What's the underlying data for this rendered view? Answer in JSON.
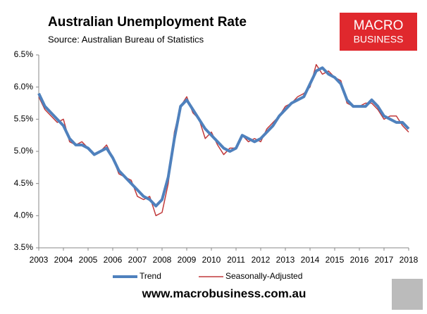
{
  "chart_data": {
    "type": "line",
    "title": "Australian Unemployment Rate",
    "subtitle": "Source: Australian Bureau of Statistics",
    "logo": [
      "MACRO",
      "BUSINESS"
    ],
    "footer": "www.macrobusiness.com.au",
    "x": [
      2003,
      2003.25,
      2003.5,
      2003.75,
      2004,
      2004.25,
      2004.5,
      2004.75,
      2005,
      2005.25,
      2005.5,
      2005.75,
      2006,
      2006.25,
      2006.5,
      2006.75,
      2007,
      2007.25,
      2007.5,
      2007.75,
      2008,
      2008.25,
      2008.5,
      2008.75,
      2009,
      2009.25,
      2009.5,
      2009.75,
      2010,
      2010.25,
      2010.5,
      2010.75,
      2011,
      2011.25,
      2011.5,
      2011.75,
      2012,
      2012.25,
      2012.5,
      2012.75,
      2013,
      2013.25,
      2013.5,
      2013.75,
      2014,
      2014.25,
      2014.5,
      2014.75,
      2015,
      2015.25,
      2015.5,
      2015.75,
      2016,
      2016.25,
      2016.5,
      2016.75,
      2017,
      2017.25,
      2017.5,
      2017.75,
      2018
    ],
    "series": [
      {
        "name": "Trend",
        "color": "#4f81bd",
        "width": 4,
        "values": [
          5.9,
          5.7,
          5.6,
          5.5,
          5.4,
          5.2,
          5.1,
          5.1,
          5.05,
          4.95,
          5.0,
          5.05,
          4.9,
          4.7,
          4.6,
          4.5,
          4.4,
          4.3,
          4.25,
          4.15,
          4.25,
          4.6,
          5.2,
          5.7,
          5.8,
          5.65,
          5.5,
          5.35,
          5.25,
          5.15,
          5.05,
          5.0,
          5.05,
          5.25,
          5.2,
          5.15,
          5.2,
          5.3,
          5.4,
          5.55,
          5.65,
          5.75,
          5.8,
          5.85,
          6.05,
          6.25,
          6.3,
          6.2,
          6.15,
          6.05,
          5.8,
          5.7,
          5.7,
          5.7,
          5.8,
          5.7,
          5.55,
          5.5,
          5.45,
          5.45,
          5.35
        ]
      },
      {
        "name": "Seasonally-Adjusted",
        "color": "#c0393b",
        "width": 1.5,
        "values": [
          5.85,
          5.65,
          5.55,
          5.45,
          5.5,
          5.15,
          5.1,
          5.15,
          5.05,
          4.95,
          5.0,
          5.1,
          4.9,
          4.65,
          4.6,
          4.55,
          4.3,
          4.25,
          4.3,
          4.0,
          4.05,
          4.5,
          5.3,
          5.7,
          5.85,
          5.6,
          5.5,
          5.2,
          5.3,
          5.1,
          4.95,
          5.05,
          5.05,
          5.25,
          5.15,
          5.2,
          5.15,
          5.35,
          5.45,
          5.55,
          5.7,
          5.75,
          5.85,
          5.9,
          6.0,
          6.35,
          6.2,
          6.25,
          6.15,
          6.1,
          5.75,
          5.7,
          5.7,
          5.75,
          5.75,
          5.65,
          5.5,
          5.55,
          5.55,
          5.4,
          5.3
        ]
      }
    ],
    "xlim": [
      2003,
      2018
    ],
    "xticks": [
      2003,
      2004,
      2005,
      2006,
      2007,
      2008,
      2009,
      2010,
      2011,
      2012,
      2013,
      2014,
      2015,
      2016,
      2017,
      2018
    ],
    "ylim": [
      3.5,
      6.5
    ],
    "yticks": [
      {
        "value": 3.5,
        "label": "3.5%"
      },
      {
        "value": 4.0,
        "label": "4.0%"
      },
      {
        "value": 4.5,
        "label": "4.5%"
      },
      {
        "value": 5.0,
        "label": "5.0%"
      },
      {
        "value": 5.5,
        "label": "5.5%"
      },
      {
        "value": 6.0,
        "label": "6.0%"
      },
      {
        "value": 6.5,
        "label": "6.5%"
      }
    ],
    "grid": false
  }
}
